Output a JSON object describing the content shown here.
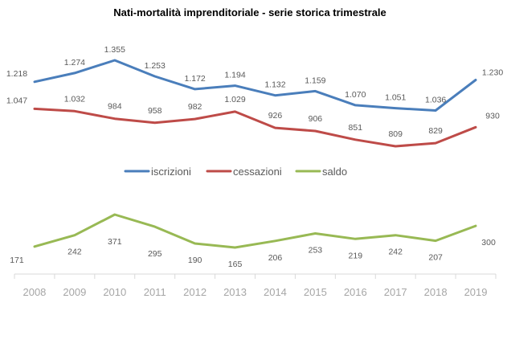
{
  "chart_data": {
    "type": "line",
    "title": "Nati-mortalità imprenditoriale - serie storica trimestrale",
    "xlabel": "",
    "ylabel": "",
    "categories": [
      "2008",
      "2009",
      "2010",
      "2011",
      "2012",
      "2013",
      "2014",
      "2015",
      "2016",
      "2017",
      "2018",
      "2019"
    ],
    "series": [
      {
        "name": "iscrizioni",
        "color": "#4a7ebb",
        "values": [
          1218,
          1274,
          1355,
          1253,
          1172,
          1194,
          1132,
          1159,
          1070,
          1051,
          1036,
          1230
        ],
        "labels": [
          "1.218",
          "1.274",
          "1.355",
          "1.253",
          "1.172",
          "1.194",
          "1.132",
          "1.159",
          "1.070",
          "1.051",
          "1.036",
          "1.230"
        ]
      },
      {
        "name": "cessazioni",
        "color": "#be4b48",
        "values": [
          1047,
          1032,
          984,
          958,
          982,
          1029,
          926,
          906,
          851,
          809,
          829,
          930
        ],
        "labels": [
          "1.047",
          "1.032",
          "984",
          "958",
          "982",
          "1.029",
          "926",
          "906",
          "851",
          "809",
          "829",
          "930"
        ]
      },
      {
        "name": "saldo",
        "color": "#98b954",
        "values": [
          171,
          242,
          371,
          295,
          190,
          165,
          206,
          253,
          219,
          242,
          207,
          300
        ],
        "labels": [
          "171",
          "242",
          "371",
          "295",
          "190",
          "165",
          "206",
          "253",
          "219",
          "242",
          "207",
          "300"
        ]
      }
    ],
    "legend_position": "middle",
    "grid": false,
    "axis_color": "#d9d9d9",
    "tick_label_color": "#a6a6a6",
    "value_label_color": "#595959"
  }
}
